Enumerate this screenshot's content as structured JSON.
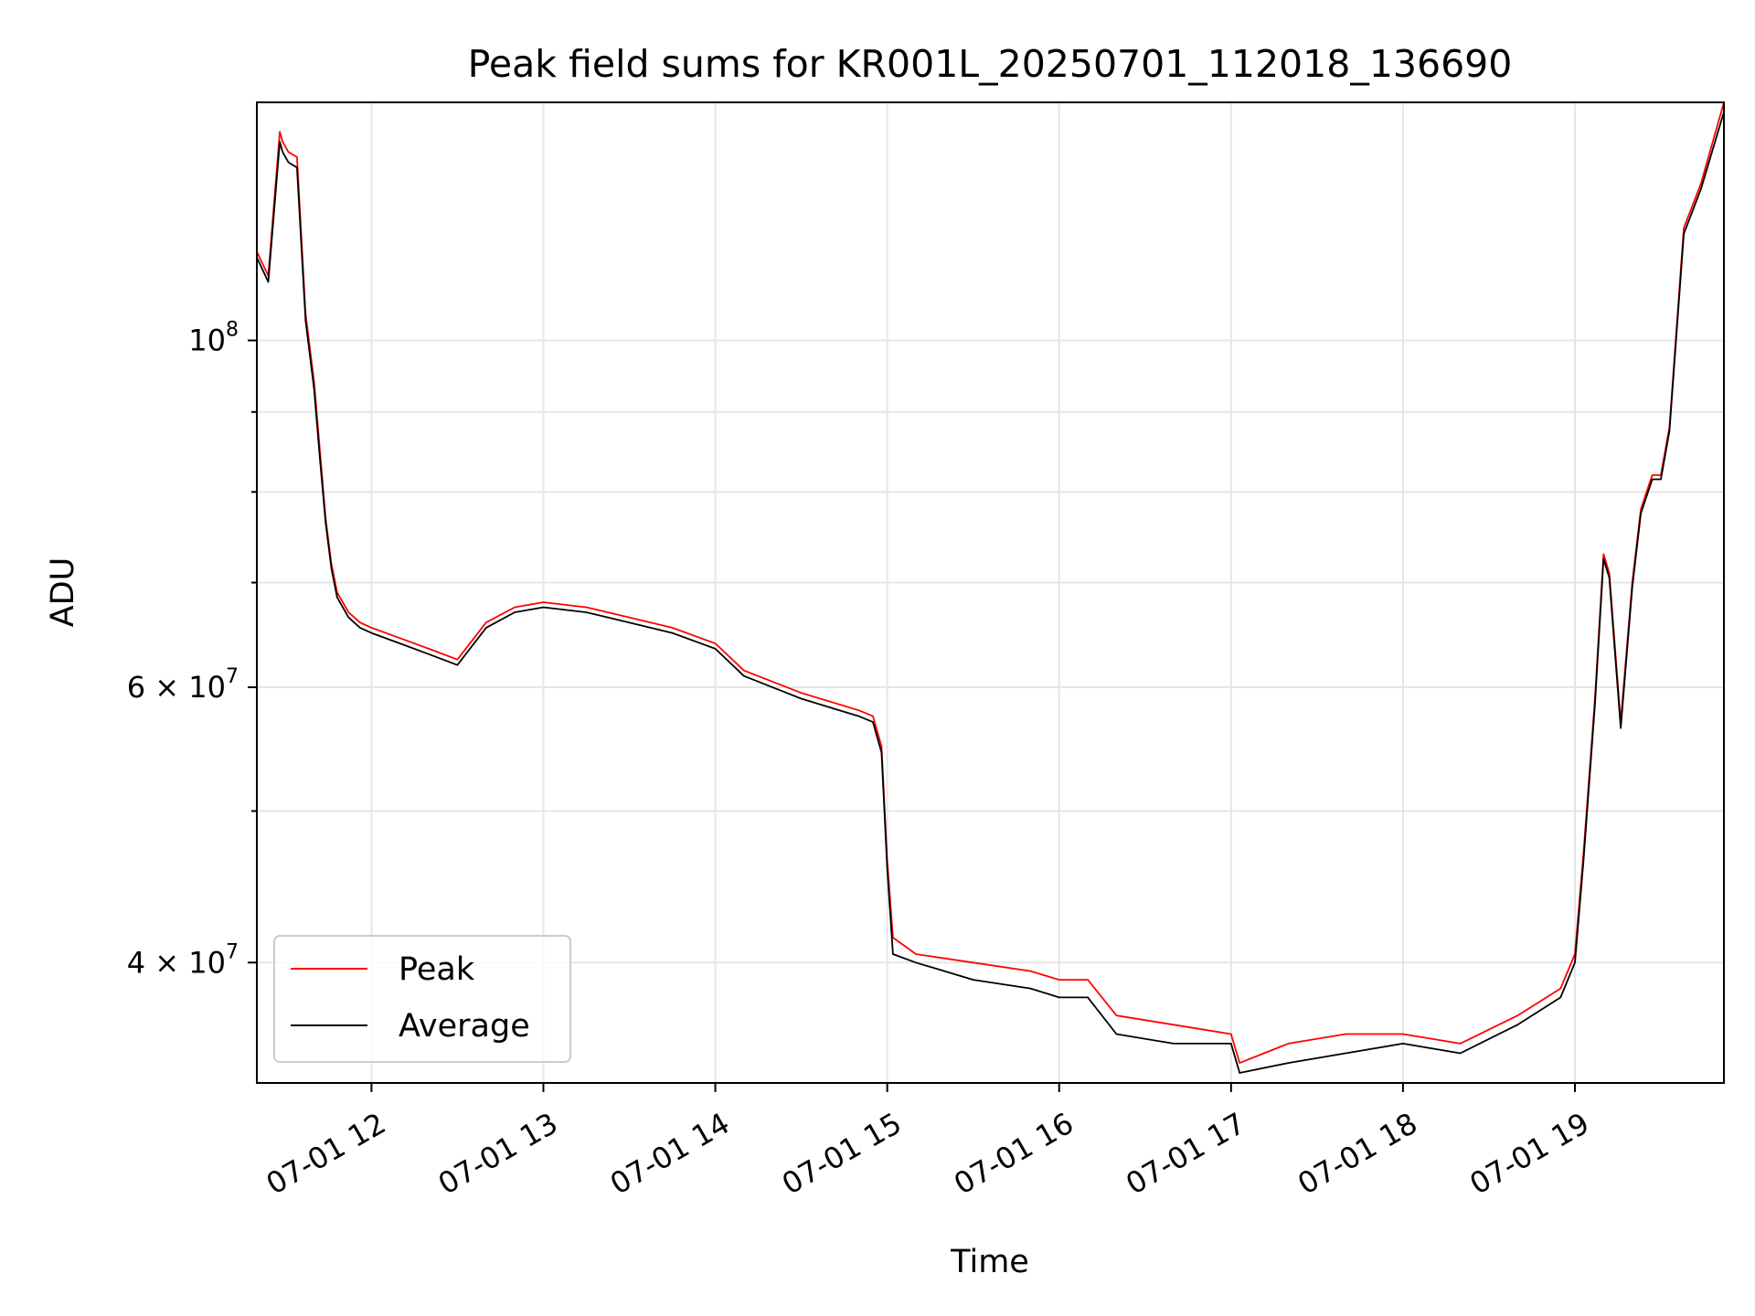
{
  "chart_data": {
    "type": "line",
    "title": "Peak field sums for KR001L_20250701_112018_136690",
    "xlabel": "Time",
    "ylabel": "ADU",
    "yscale": "log",
    "grid": true,
    "legend_position": "lower-left",
    "xlim": [
      "07-01 11:20",
      "07-01 19:52"
    ],
    "ylim": [
      33500000,
      142000000
    ],
    "x_ticks": [
      "07-01 12",
      "07-01 13",
      "07-01 14",
      "07-01 15",
      "07-01 16",
      "07-01 17",
      "07-01 18",
      "07-01 19"
    ],
    "x_tick_times": [
      "07-01 12:00",
      "07-01 13:00",
      "07-01 14:00",
      "07-01 15:00",
      "07-01 16:00",
      "07-01 17:00",
      "07-01 18:00",
      "07-01 19:00"
    ],
    "y_ticks": [
      {
        "value": 100000000,
        "base": "10",
        "exp": "8"
      },
      {
        "value": 60000000,
        "base": "6 × 10",
        "exp": "7"
      },
      {
        "value": 40000000,
        "base": "4 × 10",
        "exp": "7"
      }
    ],
    "y_minor_ticks": [
      50000000,
      70000000,
      80000000,
      90000000
    ],
    "series": [
      {
        "name": "Peak",
        "color": "#ff0000",
        "x": [
          "07-01 11:20",
          "07-01 11:24",
          "07-01 11:28",
          "07-01 11:29",
          "07-01 11:31",
          "07-01 11:34",
          "07-01 11:37",
          "07-01 11:40",
          "07-01 11:42",
          "07-01 11:44",
          "07-01 11:46",
          "07-01 11:48",
          "07-01 11:52",
          "07-01 11:56",
          "07-01 12:00",
          "07-01 12:10",
          "07-01 12:20",
          "07-01 12:30",
          "07-01 12:40",
          "07-01 12:50",
          "07-01 13:00",
          "07-01 13:15",
          "07-01 13:30",
          "07-01 13:45",
          "07-01 14:00",
          "07-01 14:10",
          "07-01 14:30",
          "07-01 14:50",
          "07-01 14:55",
          "07-01 14:58",
          "07-01 15:00",
          "07-01 15:02",
          "07-01 15:10",
          "07-01 15:30",
          "07-01 15:50",
          "07-01 16:00",
          "07-01 16:10",
          "07-01 16:20",
          "07-01 16:40",
          "07-01 17:00",
          "07-01 17:03",
          "07-01 17:20",
          "07-01 17:40",
          "07-01 18:00",
          "07-01 18:20",
          "07-01 18:40",
          "07-01 18:55",
          "07-01 19:00",
          "07-01 19:03",
          "07-01 19:07",
          "07-01 19:10",
          "07-01 19:12",
          "07-01 19:16",
          "07-01 19:20",
          "07-01 19:23",
          "07-01 19:27",
          "07-01 19:30",
          "07-01 19:33",
          "07-01 19:38",
          "07-01 19:44",
          "07-01 19:52"
        ],
        "y": [
          114000000,
          110000000,
          136000000,
          134000000,
          132000000,
          131000000,
          104000000,
          94000000,
          85000000,
          77000000,
          72000000,
          69000000,
          67000000,
          66000000,
          65500000,
          64500000,
          63500000,
          62500000,
          66000000,
          67500000,
          68000000,
          67500000,
          66500000,
          65500000,
          64000000,
          61500000,
          59500000,
          58000000,
          57500000,
          55000000,
          46500000,
          41500000,
          40500000,
          40000000,
          39500000,
          39000000,
          39000000,
          37000000,
          36500000,
          36000000,
          34500000,
          35500000,
          36000000,
          36000000,
          35500000,
          37000000,
          38500000,
          40500000,
          47000000,
          59000000,
          73000000,
          71000000,
          57000000,
          70000000,
          78000000,
          82000000,
          82000000,
          88000000,
          118000000,
          126000000,
          142000000
        ]
      },
      {
        "name": "Average",
        "color": "#000000",
        "x": [
          "07-01 11:20",
          "07-01 11:24",
          "07-01 11:28",
          "07-01 11:29",
          "07-01 11:31",
          "07-01 11:34",
          "07-01 11:37",
          "07-01 11:40",
          "07-01 11:42",
          "07-01 11:44",
          "07-01 11:46",
          "07-01 11:48",
          "07-01 11:52",
          "07-01 11:56",
          "07-01 12:00",
          "07-01 12:10",
          "07-01 12:20",
          "07-01 12:30",
          "07-01 12:40",
          "07-01 12:50",
          "07-01 13:00",
          "07-01 13:15",
          "07-01 13:30",
          "07-01 13:45",
          "07-01 14:00",
          "07-01 14:10",
          "07-01 14:30",
          "07-01 14:50",
          "07-01 14:55",
          "07-01 14:58",
          "07-01 15:00",
          "07-01 15:02",
          "07-01 15:10",
          "07-01 15:30",
          "07-01 15:50",
          "07-01 16:00",
          "07-01 16:10",
          "07-01 16:20",
          "07-01 16:40",
          "07-01 17:00",
          "07-01 17:03",
          "07-01 17:20",
          "07-01 17:40",
          "07-01 18:00",
          "07-01 18:20",
          "07-01 18:40",
          "07-01 18:55",
          "07-01 19:00",
          "07-01 19:03",
          "07-01 19:07",
          "07-01 19:10",
          "07-01 19:12",
          "07-01 19:16",
          "07-01 19:20",
          "07-01 19:23",
          "07-01 19:27",
          "07-01 19:30",
          "07-01 19:33",
          "07-01 19:38",
          "07-01 19:44",
          "07-01 19:52"
        ],
        "y": [
          113000000,
          109000000,
          134000000,
          132000000,
          130000000,
          129000000,
          103000000,
          93000000,
          84000000,
          76500000,
          71500000,
          68500000,
          66500000,
          65500000,
          65000000,
          64000000,
          63000000,
          62000000,
          65500000,
          67000000,
          67500000,
          67000000,
          66000000,
          65000000,
          63500000,
          61000000,
          59000000,
          57500000,
          57000000,
          54500000,
          46000000,
          40500000,
          40000000,
          39000000,
          38500000,
          38000000,
          38000000,
          36000000,
          35500000,
          35500000,
          34000000,
          34500000,
          35000000,
          35500000,
          35000000,
          36500000,
          38000000,
          40000000,
          46500000,
          58500000,
          72500000,
          70500000,
          56500000,
          69500000,
          77500000,
          81500000,
          81500000,
          87500000,
          117000000,
          125000000,
          140000000
        ]
      }
    ]
  }
}
